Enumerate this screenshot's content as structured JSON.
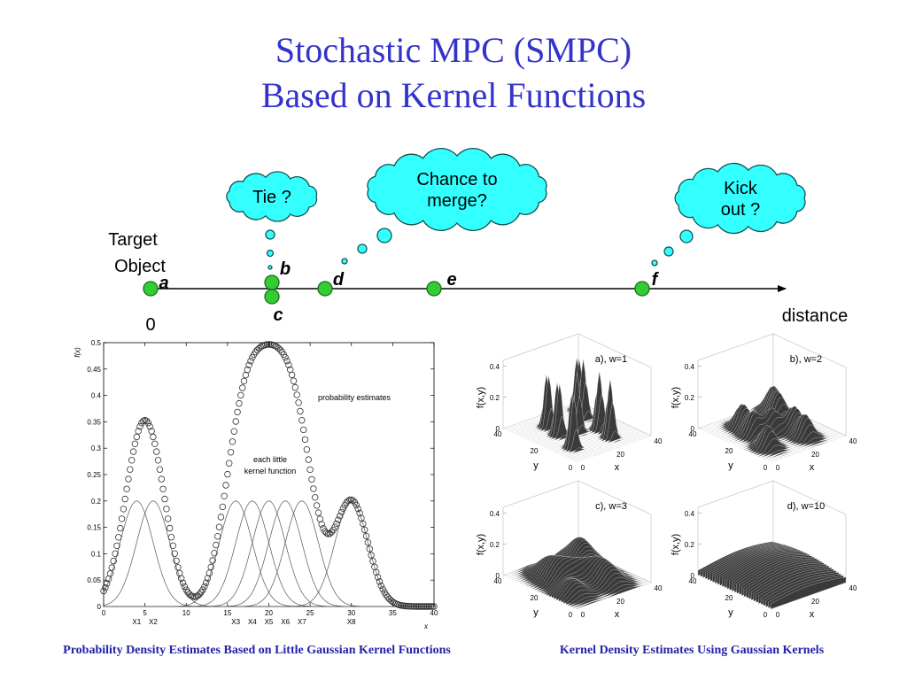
{
  "title": [
    "Stochastic MPC (SMPC)",
    "Based on Kernel Functions"
  ],
  "diagram": {
    "target_label": [
      "Target",
      "Object"
    ],
    "origin": "0",
    "axis_label": "distance",
    "points": [
      "a",
      "b",
      "c",
      "d",
      "e",
      "f"
    ],
    "bubbles": [
      [
        "Tie ?"
      ],
      [
        "Chance to",
        "merge?"
      ],
      [
        "Kick",
        "out ?"
      ]
    ]
  },
  "chart_data": {
    "type": "kernel_density",
    "xlim": [
      0,
      40
    ],
    "ylim": [
      0,
      0.5
    ],
    "xticks": [
      0,
      5,
      10,
      15,
      20,
      25,
      30,
      35,
      40
    ],
    "yticks": [
      0,
      0.05,
      0.1,
      0.15,
      0.2,
      0.25,
      0.3,
      0.35,
      0.4,
      0.45,
      0.5
    ],
    "xlabel": "x",
    "ylabel": "f(x)",
    "kernels": {
      "names": [
        "X1",
        "X2",
        "X3",
        "X4",
        "X5",
        "X6",
        "X7",
        "X8"
      ],
      "centers": [
        4,
        6,
        16,
        18,
        20,
        22,
        24,
        30
      ],
      "amplitude": 0.2,
      "bandwidth": 2
    },
    "annotations": [
      "probability estimates",
      "each little",
      "kernel function"
    ],
    "caption": "Probability Density Estimates Based on Little Gaussian Kernel Functions"
  },
  "surface_plots": {
    "panels": [
      "a), w=1",
      "b), w=2",
      "c), w=3",
      "d), w=10"
    ],
    "zlim": [
      0,
      0.4
    ],
    "zticks": [
      0,
      0.2,
      0.4
    ],
    "xlim": [
      0,
      40
    ],
    "xticks": [
      0,
      20,
      40
    ],
    "ylim": [
      0,
      40
    ],
    "yticks": [
      40,
      20,
      0
    ],
    "zlabel": "f(x,y)",
    "xlabel": "x",
    "ylabel": "y",
    "caption": "Kernel Density Estimates Using Gaussian Kernels"
  }
}
